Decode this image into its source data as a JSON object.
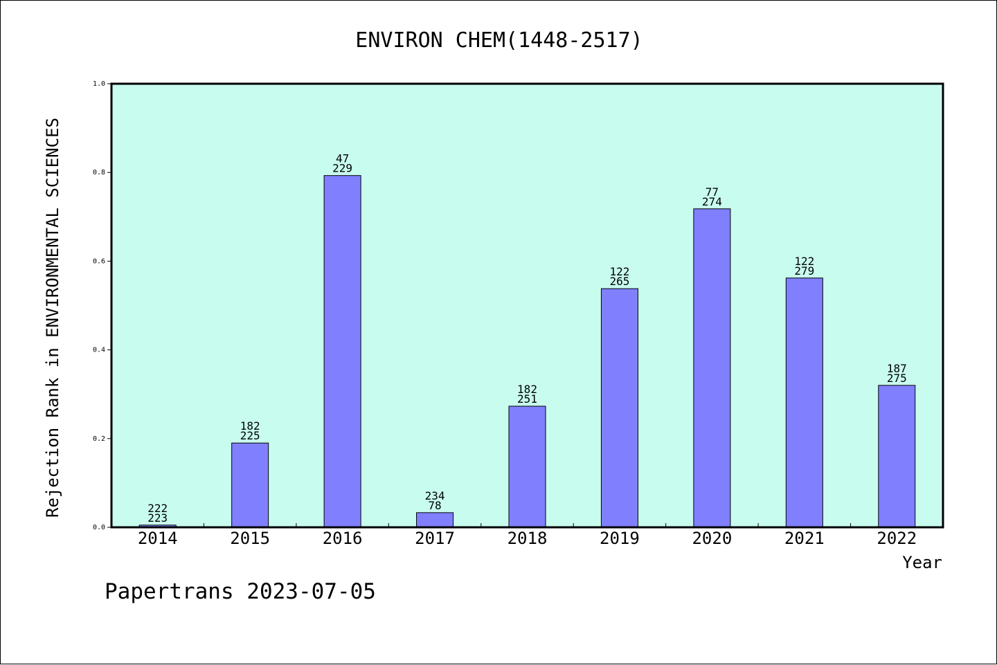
{
  "chart_data": {
    "type": "bar",
    "title": "ENVIRON CHEM(1448-2517)",
    "xlabel": "Year",
    "ylabel": "Rejection Rank in ENVIRONMENTAL SCIENCES",
    "categories": [
      "2014",
      "2015",
      "2016",
      "2017",
      "2018",
      "2019",
      "2020",
      "2021",
      "2022"
    ],
    "values": [
      0.005,
      0.19,
      0.793,
      0.033,
      0.273,
      0.538,
      0.718,
      0.562,
      0.32
    ],
    "labels_top": [
      "222",
      "182",
      "47",
      "234",
      "182",
      "122",
      "77",
      "122",
      "187"
    ],
    "labels_bottom": [
      "223",
      "225",
      "229",
      "78",
      "251",
      "265",
      "274",
      "279",
      "275"
    ],
    "ylim": [
      0,
      1.0
    ],
    "yticks": [
      "0.0",
      "0.2",
      "0.4",
      "0.6",
      "0.8",
      "1.0"
    ],
    "grid": false,
    "colors": {
      "plot_background": "#c8fcee",
      "bar_fill": "#8080ff",
      "bar_stroke": "#000000"
    }
  },
  "footer": {
    "text": "Papertrans 2023-07-05"
  }
}
